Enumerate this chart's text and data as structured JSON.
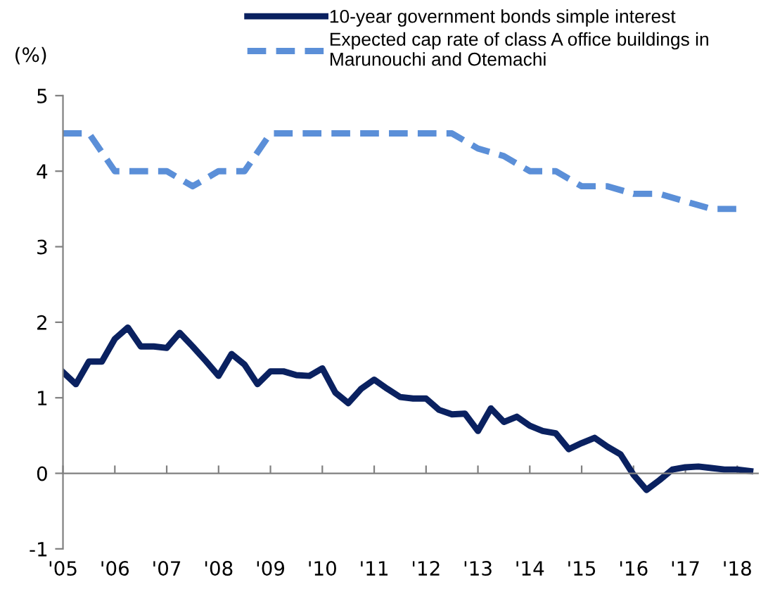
{
  "chart_data": {
    "type": "line",
    "ylabel": "(%)",
    "legend": "top",
    "marker": "none",
    "xlim": [
      2005,
      2018.4
    ],
    "ylim": [
      -1,
      5
    ],
    "yticks": [
      -1,
      0,
      1,
      2,
      3,
      4,
      5
    ],
    "xticks": [
      {
        "value": 2005,
        "label": "'05"
      },
      {
        "value": 2006,
        "label": "'06"
      },
      {
        "value": 2007,
        "label": "'07"
      },
      {
        "value": 2008,
        "label": "'08"
      },
      {
        "value": 2009,
        "label": "'09"
      },
      {
        "value": 2010,
        "label": "'10"
      },
      {
        "value": 2011,
        "label": "'11"
      },
      {
        "value": 2012,
        "label": "'12"
      },
      {
        "value": 2013,
        "label": "'13"
      },
      {
        "value": 2014,
        "label": "'14"
      },
      {
        "value": 2015,
        "label": "'15"
      },
      {
        "value": 2016,
        "label": "'16"
      },
      {
        "value": 2017,
        "label": "'17"
      },
      {
        "value": 2018,
        "label": "'18"
      }
    ],
    "series": [
      {
        "name": "10-year government bonds simple interest",
        "color": "#0a2160",
        "line_style": "solid",
        "x": [
          2005,
          2005.25,
          2005.5,
          2005.75,
          2006,
          2006.25,
          2006.5,
          2006.75,
          2007,
          2007.25,
          2007.5,
          2007.75,
          2008,
          2008.25,
          2008.5,
          2008.75,
          2009,
          2009.25,
          2009.5,
          2009.75,
          2010,
          2010.25,
          2010.5,
          2010.75,
          2011,
          2011.25,
          2011.5,
          2011.75,
          2012,
          2012.25,
          2012.5,
          2012.75,
          2013,
          2013.25,
          2013.5,
          2013.75,
          2014,
          2014.25,
          2014.5,
          2014.75,
          2015,
          2015.25,
          2015.5,
          2015.75,
          2016,
          2016.25,
          2016.5,
          2016.75,
          2017,
          2017.25,
          2017.5,
          2017.75,
          2018,
          2018.25
        ],
        "values": [
          1.34,
          1.18,
          1.48,
          1.48,
          1.78,
          1.93,
          1.68,
          1.68,
          1.66,
          1.86,
          1.68,
          1.49,
          1.29,
          1.58,
          1.44,
          1.18,
          1.35,
          1.35,
          1.3,
          1.29,
          1.39,
          1.07,
          0.93,
          1.12,
          1.24,
          1.12,
          1.01,
          0.99,
          0.99,
          0.84,
          0.78,
          0.79,
          0.56,
          0.86,
          0.68,
          0.75,
          0.63,
          0.56,
          0.53,
          0.32,
          0.4,
          0.47,
          0.35,
          0.25,
          -0.02,
          -0.22,
          -0.09,
          0.05,
          0.08,
          0.09,
          0.07,
          0.05,
          0.05,
          0.03
        ]
      },
      {
        "name": "Expected cap rate of class A office buildings in\nMarunouchi and Otemachi",
        "color": "#5b8fd8",
        "line_style": "dashed",
        "x": [
          2005,
          2005.5,
          2006,
          2006.5,
          2007,
          2007.5,
          2008,
          2008.5,
          2009,
          2009.5,
          2010,
          2010.5,
          2011,
          2011.5,
          2012,
          2012.5,
          2013,
          2013.5,
          2014,
          2014.5,
          2015,
          2015.5,
          2016,
          2016.5,
          2017,
          2017.5,
          2018
        ],
        "values": [
          4.5,
          4.5,
          4.0,
          4.0,
          4.0,
          3.8,
          4.0,
          4.0,
          4.5,
          4.5,
          4.5,
          4.5,
          4.5,
          4.5,
          4.5,
          4.5,
          4.3,
          4.2,
          4.0,
          4.0,
          3.8,
          3.8,
          3.7,
          3.7,
          3.6,
          3.5,
          3.5
        ]
      }
    ]
  }
}
